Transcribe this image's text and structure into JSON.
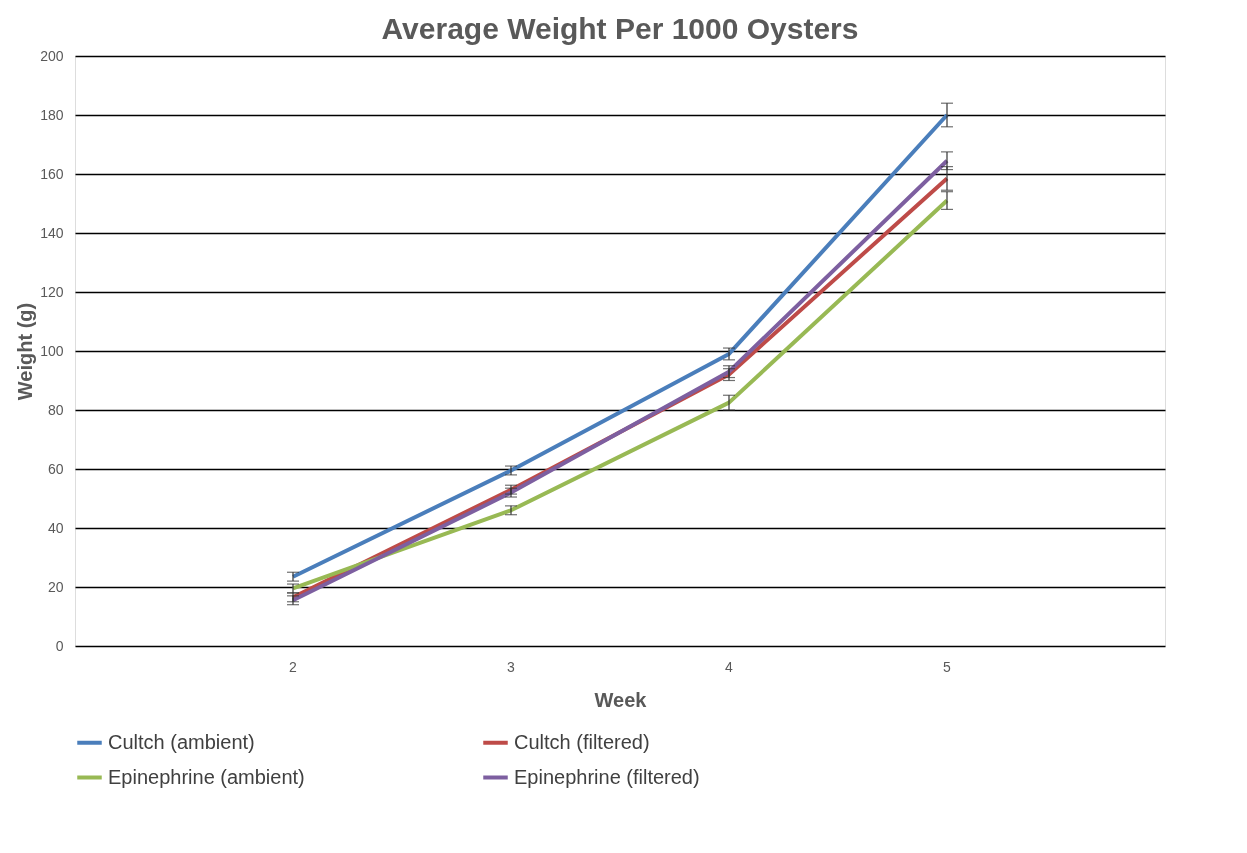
{
  "chart_data": {
    "type": "line",
    "title": "Average Weight Per 1000 Oysters",
    "xlabel": "Week",
    "ylabel": "Weight (g)",
    "categories": [
      "2",
      "3",
      "4",
      "5"
    ],
    "series": [
      {
        "name": "Cultch (ambient)",
        "color": "#4a7ebb",
        "values": [
          23.5,
          59.5,
          99,
          180
        ],
        "errors": [
          1.5,
          1.5,
          2,
          4
        ]
      },
      {
        "name": "Cultch (filtered)",
        "color": "#be4b48",
        "values": [
          16.5,
          53,
          92,
          158.5
        ],
        "errors": [
          1.5,
          1.5,
          2,
          4
        ]
      },
      {
        "name": "Epinephrine (ambient)",
        "color": "#98b954",
        "values": [
          19.5,
          46,
          82.5,
          151
        ],
        "errors": [
          1.5,
          1.5,
          2.5,
          3
        ]
      },
      {
        "name": "Epinephrine (filtered)",
        "color": "#7d5fa0",
        "values": [
          15.5,
          52,
          93,
          164.5
        ],
        "errors": [
          1.5,
          1.5,
          2,
          3
        ]
      }
    ],
    "ylim": [
      0,
      200
    ],
    "yticks": [
      0,
      20,
      40,
      60,
      80,
      100,
      120,
      140,
      160,
      180,
      200
    ],
    "grid": "y",
    "legend": "bottom",
    "marker": "none"
  }
}
